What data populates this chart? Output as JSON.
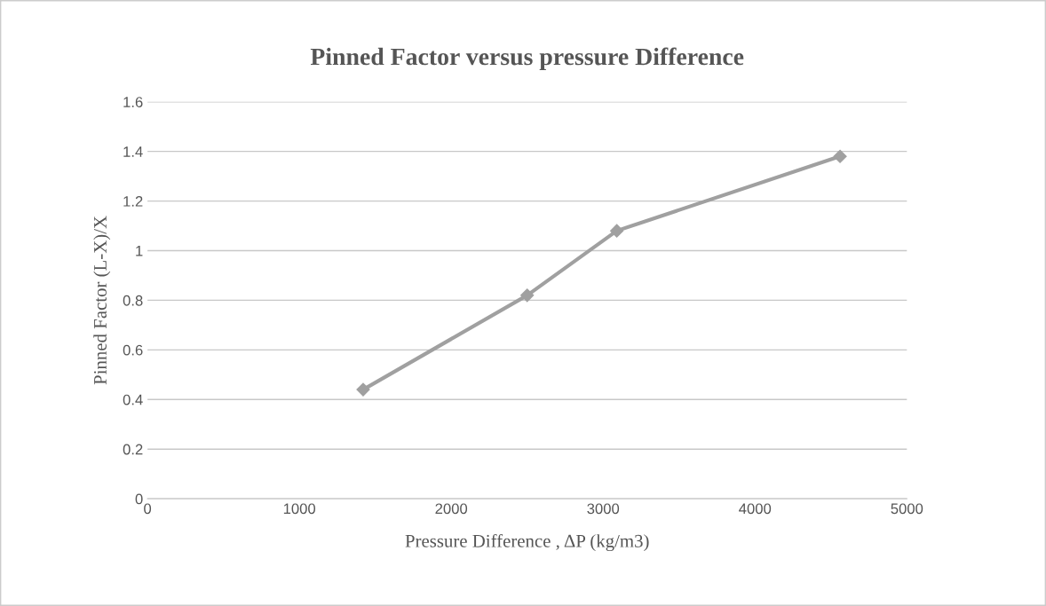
{
  "chart_data": {
    "type": "line",
    "title": "Pinned Factor versus pressure Difference",
    "xlabel": "Pressure Difference , ΔP (kg/m3)",
    "ylabel": "Pinned Factor (L-X)/X",
    "x": [
      1420,
      2500,
      3090,
      4560
    ],
    "series": [
      {
        "color": "#a0a0a0",
        "values": [
          0.44,
          0.82,
          1.08,
          1.38
        ]
      }
    ],
    "xlim": [
      0,
      5000
    ],
    "xticks": [
      0,
      1000,
      2000,
      3000,
      4000,
      5000
    ],
    "ylim": [
      0,
      1.6
    ],
    "yticks": [
      0,
      0.2,
      0.4,
      0.6,
      0.8,
      1,
      1.2,
      1.4,
      1.6
    ],
    "grid": "y",
    "marker": "diamond",
    "line_style": "solid",
    "legend": false
  }
}
